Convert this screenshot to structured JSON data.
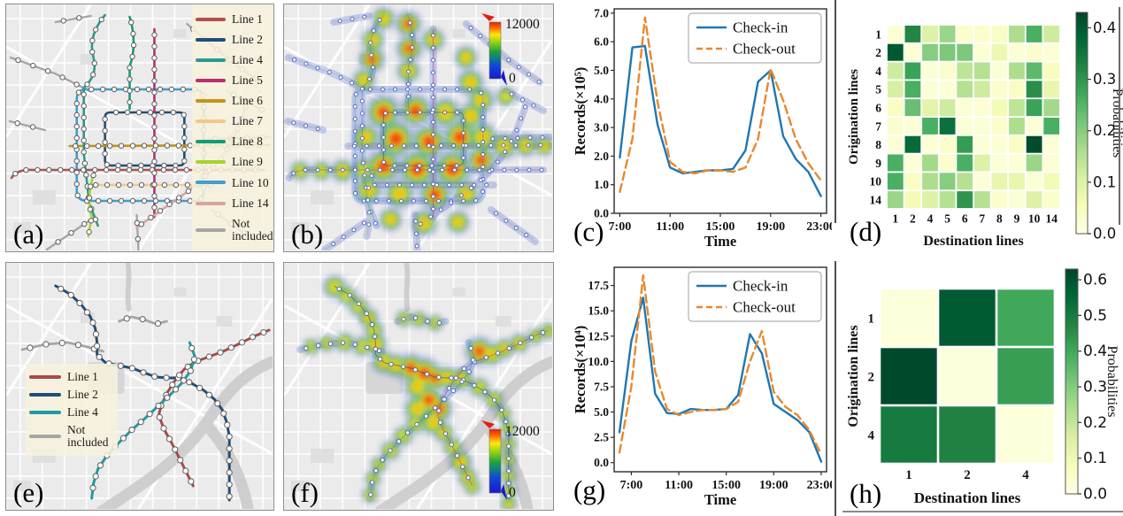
{
  "figure": {
    "background": "#ffffff"
  },
  "panels": {
    "a": {
      "letter": "(a)",
      "type": "metro-map-large",
      "legend": [
        {
          "label": "Line 1",
          "color": "#b0514d"
        },
        {
          "label": "Line 2",
          "color": "#1f4e79"
        },
        {
          "label": "Line 4",
          "color": "#2a9a90"
        },
        {
          "label": "Line 5",
          "color": "#bb2d6e"
        },
        {
          "label": "Line 6",
          "color": "#c3931b"
        },
        {
          "label": "Line 7",
          "color": "#f4c886"
        },
        {
          "label": "Line 8",
          "color": "#169a78"
        },
        {
          "label": "Line 9",
          "color": "#a5d32e"
        },
        {
          "label": "Line 10",
          "color": "#3e9ed1"
        },
        {
          "label": "Line 14",
          "color": "#d7a49e"
        },
        {
          "label": "Not included",
          "color": "#a6a6a6"
        }
      ]
    },
    "b": {
      "letter": "(b)",
      "type": "flow-heatmap-large",
      "colorbar": {
        "max_label": "12000",
        "min_label": "0"
      }
    },
    "c": {
      "letter": "(c)",
      "type": "line-chart",
      "chart_index": 0
    },
    "d": {
      "letter": "(d)",
      "type": "matrix-heatmap",
      "chart_index": 1
    },
    "e": {
      "letter": "(e)",
      "type": "metro-map-small",
      "legend": [
        {
          "label": "Line 1",
          "color": "#a84a45"
        },
        {
          "label": "Line 2",
          "color": "#1f4e79"
        },
        {
          "label": "Line 4",
          "color": "#1f9aa6"
        },
        {
          "label": "Not included",
          "color": "#a6a6a6"
        }
      ]
    },
    "f": {
      "letter": "(f)",
      "type": "flow-heatmap-small",
      "colorbar": {
        "max_label": "12000",
        "min_label": "0"
      }
    },
    "g": {
      "letter": "(g)",
      "type": "line-chart",
      "chart_index": 2
    },
    "h": {
      "letter": "(h)",
      "type": "matrix-heatmap",
      "chart_index": 3
    }
  },
  "chart_data": [
    {
      "id": "c",
      "type": "line",
      "title": "",
      "xlabel": "Time",
      "ylabel": "Records(×10⁵)",
      "xlim": [
        6.55,
        23.45
      ],
      "ylim": [
        0,
        7.15
      ],
      "grid": false,
      "x": [
        7,
        8,
        9,
        10,
        11,
        12,
        13,
        14,
        15,
        16,
        17,
        18,
        19,
        20,
        21,
        22,
        23
      ],
      "xticks": {
        "values": [
          7,
          11,
          15,
          19,
          23
        ],
        "labels": [
          "7:00",
          "11:00",
          "15:00",
          "19:00",
          "23:00"
        ]
      },
      "yticks": {
        "values": [
          0,
          1,
          2,
          3,
          4,
          5,
          6,
          7
        ],
        "labels": [
          "0.0",
          "1.0",
          "2.0",
          "3.0",
          "4.0",
          "5.0",
          "6.0",
          "7.0"
        ]
      },
      "legend_position": "upper right",
      "series": [
        {
          "name": "Check-in",
          "style": "solid",
          "color": "#1f77b4",
          "values": [
            1.95,
            5.8,
            5.85,
            3.1,
            1.6,
            1.4,
            1.45,
            1.5,
            1.5,
            1.55,
            2.2,
            4.6,
            5.0,
            2.7,
            1.9,
            1.45,
            0.6
          ]
        },
        {
          "name": "Check-out",
          "style": "dashed",
          "color": "#e8882d",
          "values": [
            0.75,
            2.6,
            6.85,
            3.9,
            1.8,
            1.45,
            1.4,
            1.5,
            1.5,
            1.45,
            1.6,
            2.6,
            5.05,
            3.95,
            2.6,
            1.75,
            1.15
          ]
        }
      ]
    },
    {
      "id": "d",
      "type": "heatmap",
      "xlabel": "Destination lines",
      "ylabel": "Origination lines",
      "rows": [
        "1",
        "2",
        "4",
        "5",
        "6",
        "7",
        "8",
        "9",
        "10",
        "14"
      ],
      "cols": [
        "1",
        "2",
        "4",
        "5",
        "6",
        "7",
        "8",
        "9",
        "10",
        "14"
      ],
      "vmax": 0.43,
      "colorbar_label": "Probabilities",
      "colorbar_ticks": {
        "values": [
          0.0,
          0.1,
          0.2,
          0.3,
          0.4
        ],
        "labels": [
          "0.0",
          "0.1",
          "0.2",
          "0.3",
          "0.4"
        ]
      },
      "values": [
        [
          0.02,
          0.32,
          0.1,
          0.18,
          0.03,
          0.03,
          0.04,
          0.16,
          0.26,
          0.12
        ],
        [
          0.4,
          0.02,
          0.2,
          0.21,
          0.21,
          0.02,
          0.07,
          0.02,
          0.03,
          0.02
        ],
        [
          0.12,
          0.28,
          0.02,
          0.03,
          0.14,
          0.15,
          0.02,
          0.16,
          0.24,
          0.05
        ],
        [
          0.11,
          0.26,
          0.02,
          0.02,
          0.15,
          0.12,
          0.03,
          0.04,
          0.31,
          0.08
        ],
        [
          0.04,
          0.23,
          0.09,
          0.12,
          0.02,
          0.02,
          0.06,
          0.14,
          0.28,
          0.17
        ],
        [
          0.03,
          0.02,
          0.26,
          0.36,
          0.02,
          0.02,
          0.03,
          0.16,
          0.02,
          0.26
        ],
        [
          0.02,
          0.37,
          0.02,
          0.03,
          0.29,
          0.02,
          0.02,
          0.04,
          0.42,
          0.02
        ],
        [
          0.26,
          0.02,
          0.17,
          0.03,
          0.26,
          0.1,
          0.02,
          0.02,
          0.18,
          0.02
        ],
        [
          0.26,
          0.04,
          0.16,
          0.2,
          0.15,
          0.02,
          0.08,
          0.08,
          0.02,
          0.06
        ],
        [
          0.18,
          0.06,
          0.1,
          0.15,
          0.3,
          0.15,
          0.03,
          0.02,
          0.1,
          0.03
        ]
      ]
    },
    {
      "id": "g",
      "type": "line",
      "title": "",
      "xlabel": "Time",
      "ylabel": "Records(×10⁴)",
      "xlim": [
        5.55,
        23.45
      ],
      "ylim": [
        -0.9,
        19.3
      ],
      "grid": false,
      "x": [
        6,
        7,
        8,
        9,
        10,
        11,
        12,
        13,
        14,
        15,
        16,
        17,
        18,
        19,
        20,
        21,
        22,
        23
      ],
      "xticks": {
        "values": [
          7,
          11,
          15,
          19,
          23
        ],
        "labels": [
          "7:00",
          "11:00",
          "15:00",
          "19:00",
          "23:00"
        ]
      },
      "yticks": {
        "values": [
          0,
          2.5,
          5,
          7.5,
          10,
          12.5,
          15,
          17.5
        ],
        "labels": [
          "0.0",
          "2.5",
          "5.0",
          "7.5",
          "10.0",
          "12.5",
          "15.0",
          "17.5"
        ]
      },
      "legend_position": "upper right",
      "series": [
        {
          "name": "Check-in",
          "style": "solid",
          "color": "#1f77b4",
          "values": [
            3.0,
            12.0,
            16.3,
            6.8,
            4.9,
            4.8,
            5.3,
            5.2,
            5.2,
            5.3,
            6.7,
            12.7,
            10.8,
            5.8,
            5.0,
            4.2,
            3.0,
            0.1
          ]
        },
        {
          "name": "Check-out",
          "style": "dashed",
          "color": "#e8882d",
          "values": [
            1.0,
            7.5,
            18.5,
            9.0,
            5.3,
            4.7,
            5.0,
            5.2,
            5.2,
            5.3,
            6.0,
            10.0,
            13.0,
            7.0,
            5.5,
            4.7,
            3.2,
            0.8
          ]
        }
      ]
    },
    {
      "id": "h",
      "type": "heatmap",
      "xlabel": "Destination lines",
      "ylabel": "Origination lines",
      "rows": [
        "1",
        "2",
        "4"
      ],
      "cols": [
        "1",
        "2",
        "4"
      ],
      "vmax": 0.63,
      "colorbar_label": "Probabilities",
      "colorbar_ticks": {
        "values": [
          0.0,
          0.1,
          0.2,
          0.3,
          0.4,
          0.5,
          0.6
        ],
        "labels": [
          "0.0",
          "0.1",
          "0.2",
          "0.3",
          "0.4",
          "0.5",
          "0.6"
        ]
      },
      "values": [
        [
          0.02,
          0.58,
          0.4
        ],
        [
          0.62,
          0.02,
          0.42
        ],
        [
          0.5,
          0.48,
          0.02
        ]
      ]
    }
  ]
}
